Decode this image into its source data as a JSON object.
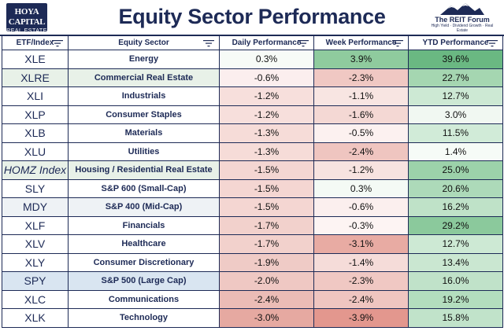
{
  "header": {
    "title": "Equity Sector Performance",
    "logo_left_line1": "HOYA CAPITAL",
    "logo_left_line2": "REAL ESTATE",
    "logo_right_line1": "The REIT Forum",
    "logo_right_line2": "High Yield · Dividend Growth · Real Estate"
  },
  "columns": [
    "ETF/Index",
    "Equity Sector",
    "Daily Performance",
    "Week Performance",
    "YTD Performance"
  ],
  "rows": [
    {
      "etf": "XLE",
      "sector": "Energy",
      "daily": "0.3%",
      "week": "3.9%",
      "ytd": "39.6%",
      "etf_bg": "#ffffff",
      "sector_bg": "#ffffff",
      "daily_bg": "#f7fbf7",
      "week_bg": "#8fcb9e",
      "ytd_bg": "#6ab882",
      "italic": false
    },
    {
      "etf": "XLRE",
      "sector": "Commercial Real Estate",
      "daily": "-0.6%",
      "week": "-2.3%",
      "ytd": "22.7%",
      "etf_bg": "#e8f1e8",
      "sector_bg": "#e8f1e8",
      "daily_bg": "#fbeeee",
      "week_bg": "#f0c8c3",
      "ytd_bg": "#a5d6b1",
      "italic": false
    },
    {
      "etf": "XLI",
      "sector": "Industrials",
      "daily": "-1.2%",
      "week": "-1.1%",
      "ytd": "12.7%",
      "etf_bg": "#ffffff",
      "sector_bg": "#ffffff",
      "daily_bg": "#f7dfdc",
      "week_bg": "#f8e5e2",
      "ytd_bg": "#cde9d4",
      "italic": false
    },
    {
      "etf": "XLP",
      "sector": "Consumer Staples",
      "daily": "-1.2%",
      "week": "-1.6%",
      "ytd": "3.0%",
      "etf_bg": "#ffffff",
      "sector_bg": "#ffffff",
      "daily_bg": "#f7dfdc",
      "week_bg": "#f4d8d4",
      "ytd_bg": "#f1f8f2",
      "italic": false
    },
    {
      "etf": "XLB",
      "sector": "Materials",
      "daily": "-1.3%",
      "week": "-0.5%",
      "ytd": "11.5%",
      "etf_bg": "#ffffff",
      "sector_bg": "#ffffff",
      "daily_bg": "#f6dcd8",
      "week_bg": "#fcf1f0",
      "ytd_bg": "#d1ebd8",
      "italic": false
    },
    {
      "etf": "XLU",
      "sector": "Utilities",
      "daily": "-1.3%",
      "week": "-2.4%",
      "ytd": "1.4%",
      "etf_bg": "#ffffff",
      "sector_bg": "#ffffff",
      "daily_bg": "#f6dcd8",
      "week_bg": "#efc5c0",
      "ytd_bg": "#f6fbf7",
      "italic": false
    },
    {
      "etf": "HOMZ Index",
      "sector": "Housing / Residential Real Estate",
      "daily": "-1.5%",
      "week": "-1.2%",
      "ytd": "25.0%",
      "etf_bg": "#e8f1e8",
      "sector_bg": "#e8f1e8",
      "daily_bg": "#f4d6d2",
      "week_bg": "#f7e3e0",
      "ytd_bg": "#9cd2aa",
      "italic": true
    },
    {
      "etf": "SLY",
      "sector": "S&P 600 (Small-Cap)",
      "daily": "-1.5%",
      "week": "0.3%",
      "ytd": "20.6%",
      "etf_bg": "#ffffff",
      "sector_bg": "#ffffff",
      "daily_bg": "#f4d6d2",
      "week_bg": "#f4faf5",
      "ytd_bg": "#addab9",
      "italic": false
    },
    {
      "etf": "MDY",
      "sector": "S&P 400 (Mid-Cap)",
      "daily": "-1.5%",
      "week": "-0.6%",
      "ytd": "16.2%",
      "etf_bg": "#eef2f5",
      "sector_bg": "#eef2f5",
      "daily_bg": "#f4d6d2",
      "week_bg": "#fbefee",
      "ytd_bg": "#bfe2c8",
      "italic": false
    },
    {
      "etf": "XLF",
      "sector": "Financials",
      "daily": "-1.7%",
      "week": "-0.3%",
      "ytd": "29.2%",
      "etf_bg": "#ffffff",
      "sector_bg": "#ffffff",
      "daily_bg": "#f2d1cc",
      "week_bg": "#fdf4f3",
      "ytd_bg": "#8bc99c",
      "italic": false
    },
    {
      "etf": "XLV",
      "sector": "Healthcare",
      "daily": "-1.7%",
      "week": "-3.1%",
      "ytd": "12.7%",
      "etf_bg": "#ffffff",
      "sector_bg": "#ffffff",
      "daily_bg": "#f2d1cc",
      "week_bg": "#e8aba3",
      "ytd_bg": "#cde9d4",
      "italic": false
    },
    {
      "etf": "XLY",
      "sector": "Consumer Discretionary",
      "daily": "-1.9%",
      "week": "-1.4%",
      "ytd": "13.4%",
      "etf_bg": "#ffffff",
      "sector_bg": "#ffffff",
      "daily_bg": "#efcbc6",
      "week_bg": "#f5dcd9",
      "ytd_bg": "#cae7d1",
      "italic": false
    },
    {
      "etf": "SPY",
      "sector": "S&P 500 (Large Cap)",
      "daily": "-2.0%",
      "week": "-2.3%",
      "ytd": "16.0%",
      "etf_bg": "#d9e5f1",
      "sector_bg": "#d9e5f1",
      "daily_bg": "#efc8c3",
      "week_bg": "#f0c8c3",
      "ytd_bg": "#c0e2c9",
      "italic": false
    },
    {
      "etf": "XLC",
      "sector": "Communications",
      "daily": "-2.4%",
      "week": "-2.4%",
      "ytd": "19.2%",
      "etf_bg": "#ffffff",
      "sector_bg": "#ffffff",
      "daily_bg": "#ebbcb6",
      "week_bg": "#efc5c0",
      "ytd_bg": "#b3ddbe",
      "italic": false
    },
    {
      "etf": "XLK",
      "sector": "Technology",
      "daily": "-3.0%",
      "week": "-3.9%",
      "ytd": "15.8%",
      "etf_bg": "#ffffff",
      "sector_bg": "#ffffff",
      "daily_bg": "#e6a9a1",
      "week_bg": "#e3978e",
      "ytd_bg": "#c1e3ca",
      "italic": false
    }
  ]
}
